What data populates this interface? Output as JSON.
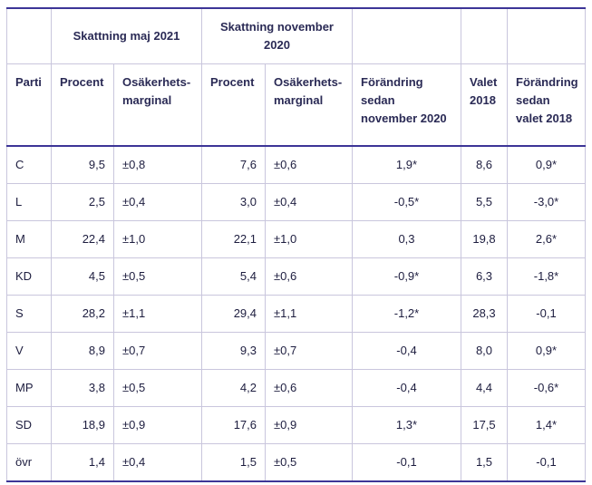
{
  "groups": {
    "maj2021": "Skattning maj 2021",
    "nov2020": "Skattning november 2020"
  },
  "headers": {
    "parti": "Parti",
    "procent_maj": "Procent",
    "marginal_maj": "Osäkerhets-marginal",
    "procent_nov": "Procent",
    "marginal_nov": "Osäkerhets-marginal",
    "forandring_nov": "Förändring sedan november 2020",
    "valet": "Valet 2018",
    "forandring_valet": "Förändring sedan valet 2018"
  },
  "rows": [
    {
      "parti": "C",
      "p_maj": "9,5",
      "m_maj": "±0,8",
      "p_nov": "7,6",
      "m_nov": "±0,6",
      "chg_nov": "1,9*",
      "valet": "8,6",
      "chg_valet": "0,9*"
    },
    {
      "parti": "L",
      "p_maj": "2,5",
      "m_maj": "±0,4",
      "p_nov": "3,0",
      "m_nov": "±0,4",
      "chg_nov": "-0,5*",
      "valet": "5,5",
      "chg_valet": "-3,0*"
    },
    {
      "parti": "M",
      "p_maj": "22,4",
      "m_maj": "±1,0",
      "p_nov": "22,1",
      "m_nov": "±1,0",
      "chg_nov": "0,3",
      "valet": "19,8",
      "chg_valet": "2,6*"
    },
    {
      "parti": "KD",
      "p_maj": "4,5",
      "m_maj": "±0,5",
      "p_nov": "5,4",
      "m_nov": "±0,6",
      "chg_nov": "-0,9*",
      "valet": "6,3",
      "chg_valet": "-1,8*"
    },
    {
      "parti": "S",
      "p_maj": "28,2",
      "m_maj": "±1,1",
      "p_nov": "29,4",
      "m_nov": "±1,1",
      "chg_nov": "-1,2*",
      "valet": "28,3",
      "chg_valet": "-0,1"
    },
    {
      "parti": "V",
      "p_maj": "8,9",
      "m_maj": "±0,7",
      "p_nov": "9,3",
      "m_nov": "±0,7",
      "chg_nov": "-0,4",
      "valet": "8,0",
      "chg_valet": "0,9*"
    },
    {
      "parti": "MP",
      "p_maj": "3,8",
      "m_maj": "±0,5",
      "p_nov": "4,2",
      "m_nov": "±0,6",
      "chg_nov": "-0,4",
      "valet": "4,4",
      "chg_valet": "-0,6*"
    },
    {
      "parti": "SD",
      "p_maj": "18,9",
      "m_maj": "±0,9",
      "p_nov": "17,6",
      "m_nov": "±0,9",
      "chg_nov": "1,3*",
      "valet": "17,5",
      "chg_valet": "1,4*"
    },
    {
      "parti": "övr",
      "p_maj": "1,4",
      "m_maj": "±0,4",
      "p_nov": "1,5",
      "m_nov": "±0,5",
      "chg_nov": "-0,1",
      "valet": "1,5",
      "chg_valet": "-0,1"
    }
  ]
}
